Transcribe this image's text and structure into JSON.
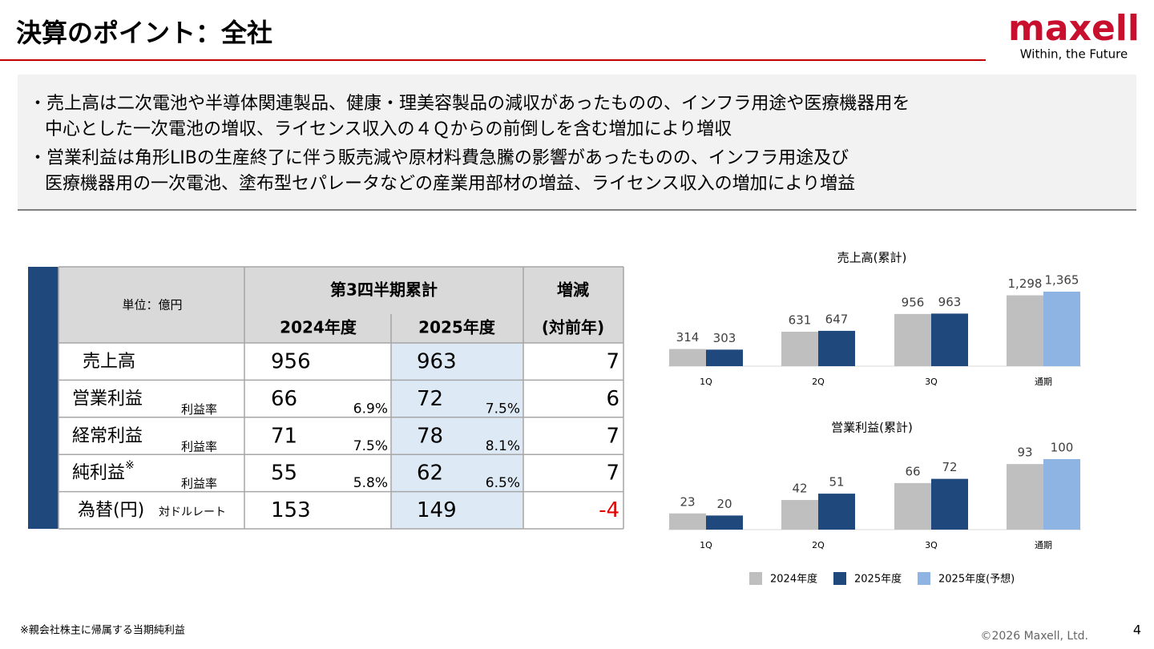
{
  "header": {
    "title": "決算のポイント：全社",
    "logo": "maxell",
    "tagline": "Within, the Future"
  },
  "bullets": [
    [
      "・売上高は二次電池や半導体関連製品、健康・理美容製品の減収があったものの、インフラ用途や医療機器用を",
      "中心とした一次電池の増収、ライセンス収入の４Ｑからの前倒しを含む増加により増収"
    ],
    [
      "・営業利益は角形LIBの生産終了に伴う販売減や原材料費急騰の影響があったものの、インフラ用途及び",
      "医療機器用の一次電池、塗布型セパレータなどの産業用部材の増益、ライセンス収入の増加により増益"
    ]
  ],
  "table": {
    "header": {
      "unit": "単位：億円",
      "period": "第3四半期累計",
      "years": [
        "2024年度",
        "2025年度"
      ],
      "change": "増減",
      "change_sub": "(対前年)"
    },
    "rows": [
      {
        "label": "売上高",
        "v2024": 956,
        "v2025": 963,
        "change": 7
      },
      {
        "label": "営業利益",
        "sub": "利益率",
        "v2024": 66,
        "r2024": "6.9%",
        "v2025": 72,
        "r2025": "7.5%",
        "change": 6
      },
      {
        "label": "経常利益",
        "sub": "利益率",
        "v2024": 71,
        "r2024": "7.5%",
        "v2025": 78,
        "r2025": "8.1%",
        "change": 7
      },
      {
        "label": "純利益",
        "note_mark": "※",
        "sub": "利益率",
        "v2024": 55,
        "r2024": "5.8%",
        "v2025": 62,
        "r2025": "6.5%",
        "change": 7
      },
      {
        "label": "為替(円)",
        "sub": "対ドルレート",
        "v2024": 153,
        "v2025": 149,
        "change": -4
      }
    ]
  },
  "chart_data": [
    {
      "type": "bar",
      "title": "売上高(累計)",
      "categories": [
        "1Q",
        "2Q",
        "3Q",
        "通期"
      ],
      "series": [
        {
          "color": "#bfbfbf",
          "values": [
            314,
            631,
            956,
            1298
          ],
          "value_labels": [
            "314",
            "631",
            "956",
            "1,298"
          ]
        },
        {
          "color": "#1f497d",
          "values": [
            303,
            647,
            963,
            null
          ],
          "value_labels": [
            "303",
            "647",
            "963",
            null
          ]
        },
        {
          "color": "#8db4e2",
          "values": [
            null,
            null,
            null,
            1365
          ],
          "value_labels": [
            null,
            null,
            null,
            "1,365"
          ]
        }
      ]
    },
    {
      "type": "bar",
      "title": "営業利益(累計)",
      "categories": [
        "1Q",
        "2Q",
        "3Q",
        "通期"
      ],
      "series": [
        {
          "name": "2024年度",
          "color": "#bfbfbf",
          "values": [
            23,
            42,
            66,
            93
          ]
        },
        {
          "name": "2025年度",
          "color": "#1f497d",
          "values": [
            20,
            51,
            72,
            null
          ]
        },
        {
          "name": "2025年度(予想)",
          "color": "#8db4e2",
          "values": [
            null,
            null,
            null,
            100
          ]
        }
      ]
    }
  ],
  "footnote": "※親会社株主に帰属する当期純利益",
  "copyright": "©2026 Maxell, Ltd.",
  "page_number": "4"
}
